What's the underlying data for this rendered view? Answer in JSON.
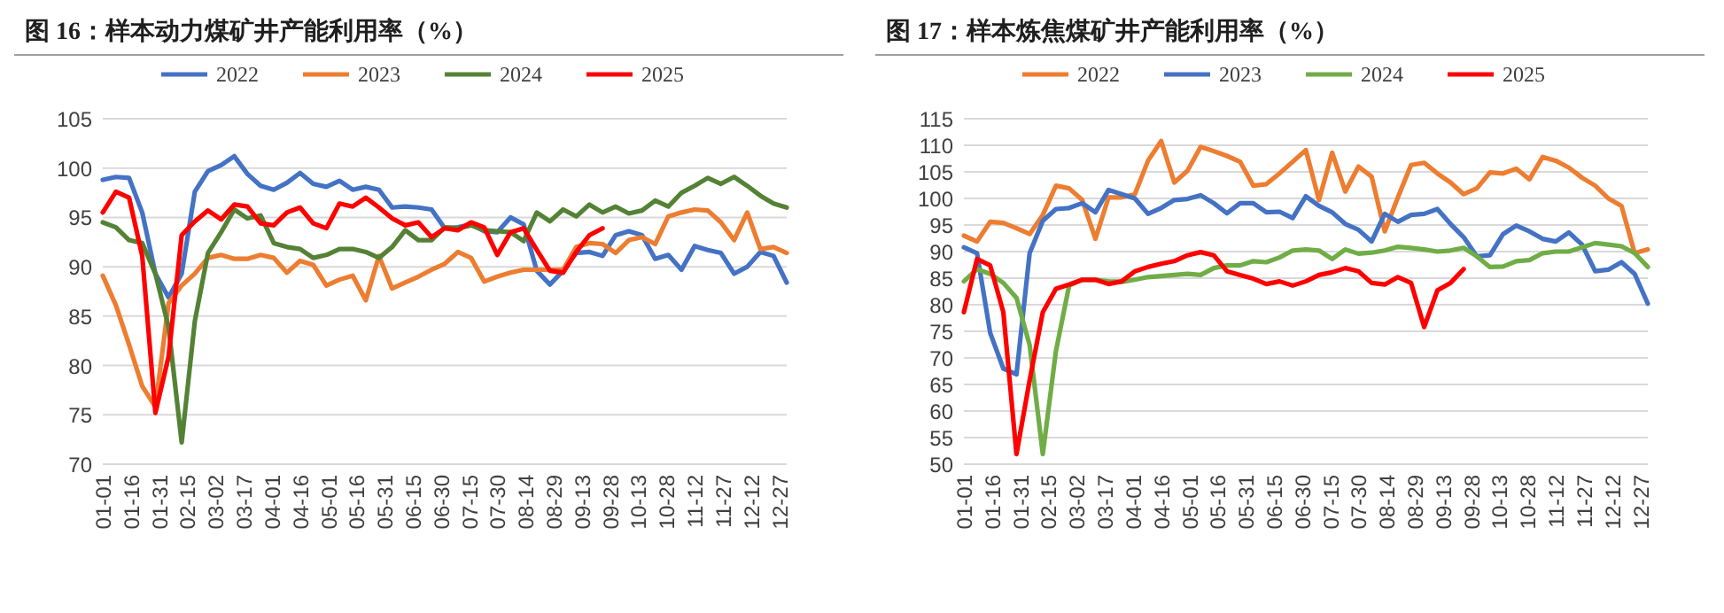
{
  "chart_data": [
    {
      "type": "line",
      "title": "图 16：样本动力煤矿井产能利用率（%）",
      "grid": "y",
      "legend": "top",
      "x": [
        "--01-01",
        "--01-08",
        "--01-15",
        "--01-22",
        "--01-29",
        "--02-05",
        "--02-12",
        "--02-19",
        "--02-26",
        "--03-05",
        "--03-12",
        "--03-19",
        "--03-26",
        "--04-02",
        "--04-09",
        "--04-16",
        "--04-23",
        "--04-30",
        "--05-07",
        "--05-14",
        "--05-21",
        "--05-28",
        "--06-04",
        "--06-11",
        "--06-18",
        "--06-25",
        "--07-02",
        "--07-09",
        "--07-16",
        "--07-23",
        "--07-30",
        "--08-06",
        "--08-13",
        "--08-20",
        "--08-27",
        "--09-03",
        "--09-10",
        "--09-17",
        "--09-24",
        "--10-01",
        "--10-08",
        "--10-15",
        "--10-22",
        "--10-29",
        "--11-05",
        "--11-12",
        "--11-19",
        "--11-26",
        "--12-03",
        "--12-10",
        "--12-17",
        "--12-24",
        "--12-31"
      ],
      "xlim": [
        "--01-01",
        "--12-31"
      ],
      "xticks": [
        {
          "value": "--01-01",
          "label": "01-01"
        },
        {
          "value": "--01-16",
          "label": "01-16"
        },
        {
          "value": "--01-31",
          "label": "01-31"
        },
        {
          "value": "--02-15",
          "label": "02-15"
        },
        {
          "value": "--03-02",
          "label": "03-02"
        },
        {
          "value": "--03-17",
          "label": "03-17"
        },
        {
          "value": "--04-01",
          "label": "04-01"
        },
        {
          "value": "--04-16",
          "label": "04-16"
        },
        {
          "value": "--05-01",
          "label": "05-01"
        },
        {
          "value": "--05-16",
          "label": "05-16"
        },
        {
          "value": "--05-31",
          "label": "05-31"
        },
        {
          "value": "--06-15",
          "label": "06-15"
        },
        {
          "value": "--06-30",
          "label": "06-30"
        },
        {
          "value": "--07-15",
          "label": "07-15"
        },
        {
          "value": "--07-30",
          "label": "07-30"
        },
        {
          "value": "--08-14",
          "label": "08-14"
        },
        {
          "value": "--08-29",
          "label": "08-29"
        },
        {
          "value": "--09-13",
          "label": "09-13"
        },
        {
          "value": "--09-28",
          "label": "09-28"
        },
        {
          "value": "--10-13",
          "label": "10-13"
        },
        {
          "value": "--10-28",
          "label": "10-28"
        },
        {
          "value": "--11-12",
          "label": "11-12"
        },
        {
          "value": "--11-27",
          "label": "11-27"
        },
        {
          "value": "--12-12",
          "label": "12-12"
        },
        {
          "value": "--12-27",
          "label": "12-27"
        }
      ],
      "ylim": [
        70,
        105
      ],
      "yticks": [
        70,
        75,
        80,
        85,
        90,
        95,
        100,
        105
      ],
      "series": [
        {
          "name": "2022",
          "color": "#4472c4",
          "values": [
            98.8,
            99.1,
            99.0,
            95.5,
            89.3,
            86.9,
            89.3,
            97.6,
            99.7,
            100.3,
            101.2,
            99.4,
            98.2,
            97.8,
            98.5,
            99.5,
            98.4,
            98.1,
            98.7,
            97.8,
            98.1,
            97.8,
            96.0,
            96.1,
            96.0,
            95.8,
            93.9,
            94.0,
            94.3,
            93.6,
            93.5,
            95.0,
            94.3,
            89.6,
            88.2,
            89.6,
            91.4,
            91.5,
            91.1,
            93.2,
            93.6,
            93.2,
            90.8,
            91.2,
            89.7,
            92.1,
            91.7,
            91.4,
            89.3,
            90.0,
            91.5,
            91.1,
            88.4
          ]
        },
        {
          "name": "2023",
          "color": "#ed7d31",
          "values": [
            89.1,
            86.1,
            82.1,
            77.9,
            75.8,
            86.3,
            88.1,
            89.3,
            90.9,
            91.2,
            90.8,
            90.8,
            91.2,
            90.9,
            89.4,
            90.6,
            90.2,
            88.1,
            88.7,
            89.1,
            86.6,
            91.1,
            87.8,
            88.4,
            89.0,
            89.7,
            90.3,
            91.5,
            90.9,
            88.5,
            89.0,
            89.4,
            89.7,
            89.7,
            89.7,
            89.7,
            92.0,
            92.4,
            92.3,
            91.4,
            92.7,
            93.0,
            92.3,
            95.1,
            95.5,
            95.8,
            95.7,
            94.5,
            92.7,
            95.5,
            91.8,
            92.0,
            91.4
          ]
        },
        {
          "name": "2024",
          "color": "#548235",
          "values": [
            94.5,
            94.0,
            92.7,
            92.4,
            89.3,
            83.9,
            72.2,
            84.5,
            91.4,
            93.5,
            95.8,
            94.9,
            95.2,
            92.4,
            92.0,
            91.8,
            90.9,
            91.2,
            91.8,
            91.8,
            91.5,
            90.9,
            92.0,
            93.7,
            92.7,
            92.7,
            94.0,
            93.9,
            94.2,
            93.7,
            93.6,
            93.5,
            92.6,
            95.5,
            94.6,
            95.8,
            95.1,
            96.3,
            95.5,
            96.1,
            95.4,
            95.7,
            96.7,
            96.1,
            97.5,
            98.2,
            99.0,
            98.4,
            99.1,
            98.2,
            97.2,
            96.4,
            96.0
          ]
        },
        {
          "name": "2025",
          "color": "#ff0000",
          "values": [
            95.5,
            97.6,
            97.0,
            91.1,
            75.2,
            80.9,
            93.2,
            94.6,
            95.7,
            94.8,
            96.3,
            96.1,
            94.4,
            94.2,
            95.5,
            96.0,
            94.4,
            93.9,
            96.4,
            96.1,
            97.0,
            96.0,
            94.9,
            94.2,
            94.5,
            93.0,
            93.9,
            93.7,
            94.5,
            94.0,
            91.2,
            93.5,
            93.9,
            91.7,
            89.6,
            89.4,
            91.5,
            93.2,
            93.9,
            null,
            null,
            null,
            null,
            null,
            null,
            null,
            null,
            null,
            null,
            null,
            null,
            null,
            null
          ]
        }
      ]
    },
    {
      "type": "line",
      "title": "图 17：样本炼焦煤矿井产能利用率（%）",
      "grid": "y",
      "legend": "top",
      "x": [
        "--01-01",
        "--01-08",
        "--01-15",
        "--01-22",
        "--01-29",
        "--02-05",
        "--02-12",
        "--02-19",
        "--02-26",
        "--03-05",
        "--03-12",
        "--03-19",
        "--03-26",
        "--04-02",
        "--04-09",
        "--04-16",
        "--04-23",
        "--04-30",
        "--05-07",
        "--05-14",
        "--05-21",
        "--05-28",
        "--06-04",
        "--06-11",
        "--06-18",
        "--06-25",
        "--07-02",
        "--07-09",
        "--07-16",
        "--07-23",
        "--07-30",
        "--08-06",
        "--08-13",
        "--08-20",
        "--08-27",
        "--09-03",
        "--09-10",
        "--09-17",
        "--09-24",
        "--10-01",
        "--10-08",
        "--10-15",
        "--10-22",
        "--10-29",
        "--11-05",
        "--11-12",
        "--11-19",
        "--11-26",
        "--12-03",
        "--12-10",
        "--12-17",
        "--12-24",
        "--12-31"
      ],
      "xlim": [
        "--01-01",
        "--12-31"
      ],
      "xticks": [
        {
          "value": "--01-01",
          "label": "01-01"
        },
        {
          "value": "--01-16",
          "label": "01-16"
        },
        {
          "value": "--01-31",
          "label": "01-31"
        },
        {
          "value": "--02-15",
          "label": "02-15"
        },
        {
          "value": "--03-02",
          "label": "03-02"
        },
        {
          "value": "--03-17",
          "label": "03-17"
        },
        {
          "value": "--04-01",
          "label": "04-01"
        },
        {
          "value": "--04-16",
          "label": "04-16"
        },
        {
          "value": "--05-01",
          "label": "05-01"
        },
        {
          "value": "--05-16",
          "label": "05-16"
        },
        {
          "value": "--05-31",
          "label": "05-31"
        },
        {
          "value": "--06-15",
          "label": "06-15"
        },
        {
          "value": "--06-30",
          "label": "06-30"
        },
        {
          "value": "--07-15",
          "label": "07-15"
        },
        {
          "value": "--07-30",
          "label": "07-30"
        },
        {
          "value": "--08-14",
          "label": "08-14"
        },
        {
          "value": "--08-29",
          "label": "08-29"
        },
        {
          "value": "--09-13",
          "label": "09-13"
        },
        {
          "value": "--09-28",
          "label": "09-28"
        },
        {
          "value": "--10-13",
          "label": "10-13"
        },
        {
          "value": "--10-28",
          "label": "10-28"
        },
        {
          "value": "--11-12",
          "label": "11-12"
        },
        {
          "value": "--11-27",
          "label": "11-27"
        },
        {
          "value": "--12-12",
          "label": "12-12"
        },
        {
          "value": "--12-27",
          "label": "12-27"
        }
      ],
      "ylim": [
        50,
        115
      ],
      "yticks": [
        50,
        55,
        60,
        65,
        70,
        75,
        80,
        85,
        90,
        95,
        100,
        105,
        110,
        115
      ],
      "series": [
        {
          "name": "2022",
          "color": "#ed7d31",
          "values": [
            93.0,
            91.9,
            95.6,
            95.4,
            94.4,
            93.3,
            96.9,
            102.4,
            101.9,
            99.7,
            92.4,
            100.2,
            100.2,
            100.8,
            107.1,
            110.8,
            103.0,
            105.2,
            109.7,
            108.9,
            108.0,
            106.9,
            102.4,
            102.7,
            104.7,
            106.9,
            109.1,
            99.7,
            108.6,
            101.3,
            106.0,
            104.1,
            93.8,
            100.2,
            106.3,
            106.7,
            104.7,
            103.0,
            100.8,
            101.9,
            104.9,
            104.7,
            105.6,
            103.6,
            107.8,
            107.1,
            105.8,
            103.9,
            102.4,
            100.0,
            98.6,
            89.7,
            90.4
          ]
        },
        {
          "name": "2023",
          "color": "#4472c4",
          "values": [
            90.8,
            89.7,
            74.7,
            68.0,
            66.9,
            89.7,
            95.8,
            98.0,
            98.2,
            99.1,
            97.4,
            101.6,
            100.8,
            100.0,
            97.1,
            98.2,
            99.7,
            99.9,
            100.6,
            99.1,
            97.2,
            99.1,
            99.1,
            97.4,
            97.5,
            96.3,
            100.4,
            98.6,
            97.4,
            95.2,
            94.1,
            91.9,
            97.1,
            95.6,
            96.9,
            97.1,
            98.0,
            95.2,
            92.7,
            89.1,
            89.3,
            93.3,
            94.9,
            93.8,
            92.4,
            91.9,
            93.6,
            91.3,
            86.3,
            86.6,
            88.0,
            85.8,
            80.2
          ]
        },
        {
          "name": "2024",
          "color": "#70ad47",
          "values": [
            84.4,
            86.7,
            85.8,
            84.1,
            81.3,
            72.4,
            51.9,
            71.3,
            83.6,
            84.7,
            84.7,
            84.4,
            84.3,
            84.7,
            85.2,
            85.4,
            85.6,
            85.8,
            85.6,
            86.9,
            87.4,
            87.4,
            88.2,
            88.0,
            88.9,
            90.2,
            90.4,
            90.2,
            88.6,
            90.4,
            89.6,
            89.8,
            90.2,
            90.9,
            90.7,
            90.4,
            90.0,
            90.2,
            90.7,
            89.1,
            87.1,
            87.2,
            88.2,
            88.4,
            89.7,
            90.0,
            90.0,
            90.8,
            91.6,
            91.3,
            91.0,
            89.7,
            87.1
          ]
        },
        {
          "name": "2025",
          "color": "#ff0000",
          "values": [
            78.6,
            88.6,
            87.4,
            78.6,
            51.9,
            65.8,
            78.6,
            83.0,
            83.8,
            84.7,
            84.7,
            83.9,
            84.4,
            86.3,
            87.1,
            87.7,
            88.2,
            89.3,
            89.9,
            89.3,
            86.3,
            85.6,
            84.9,
            83.9,
            84.4,
            83.6,
            84.4,
            85.6,
            86.1,
            86.9,
            86.3,
            84.1,
            83.8,
            85.2,
            84.1,
            75.8,
            82.7,
            84.1,
            86.7,
            null,
            null,
            null,
            null,
            null,
            null,
            null,
            null,
            null,
            null,
            null,
            null,
            null,
            null
          ]
        }
      ]
    }
  ]
}
